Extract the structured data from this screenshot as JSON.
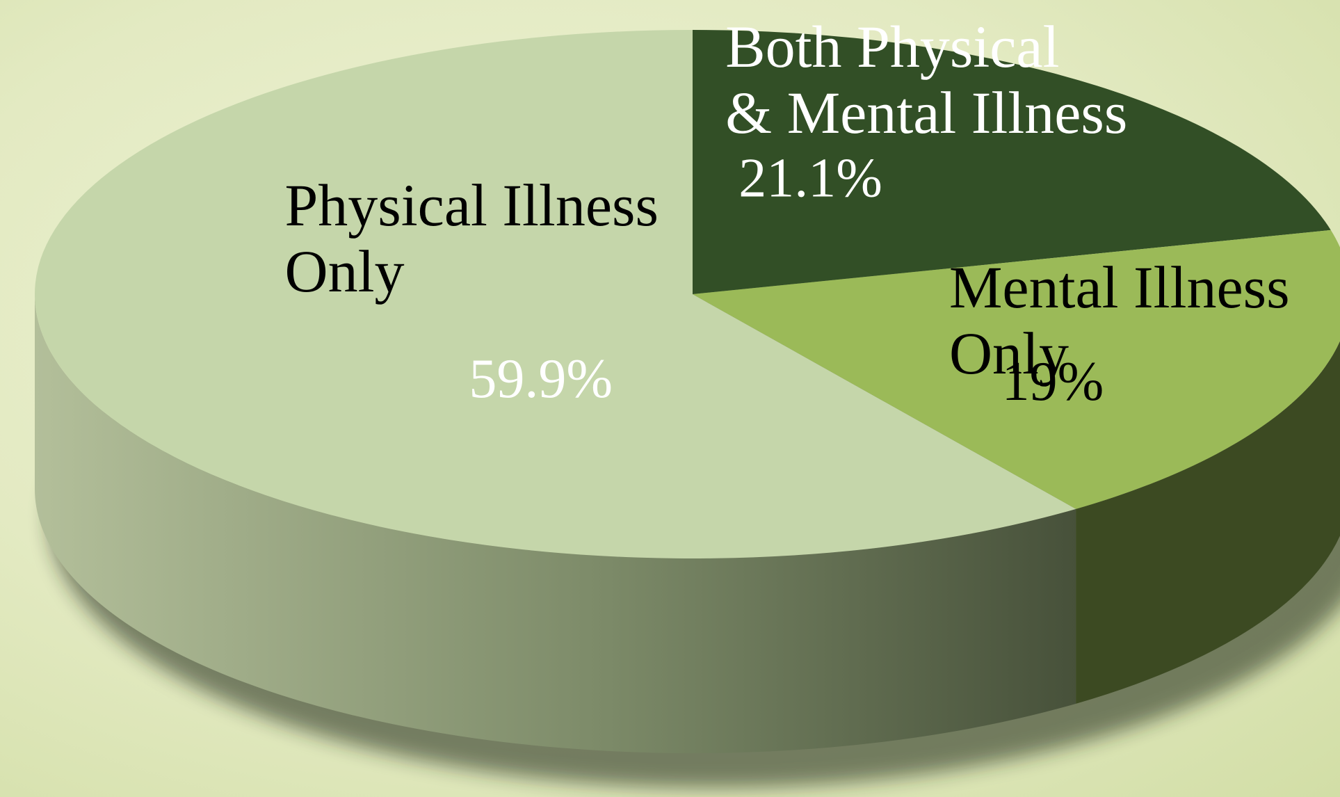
{
  "chart_data": {
    "type": "pie",
    "style": "3d",
    "title": "",
    "slices": [
      {
        "label_lines": [
          "Physical Illness",
          "Only"
        ],
        "value": 59.9,
        "value_label": "59.9%",
        "color": "#c5d6aa",
        "label_color": "#000000",
        "value_color": "#ffffff"
      },
      {
        "label_lines": [
          "Both Physical",
          "& Mental Illness"
        ],
        "value": 21.1,
        "value_label": "21.1%",
        "color": "#324f26",
        "label_color": "#ffffff",
        "value_color": "#ffffff"
      },
      {
        "label_lines": [
          "Mental Illness",
          "Only"
        ],
        "value": 19,
        "value_label": "19%",
        "color": "#9bba58",
        "label_color": "#000000",
        "value_color": "#000000"
      }
    ],
    "side_colors": [
      "#b3bf9a",
      "#5a6a48",
      "#3c4a22"
    ],
    "legend": "none"
  }
}
